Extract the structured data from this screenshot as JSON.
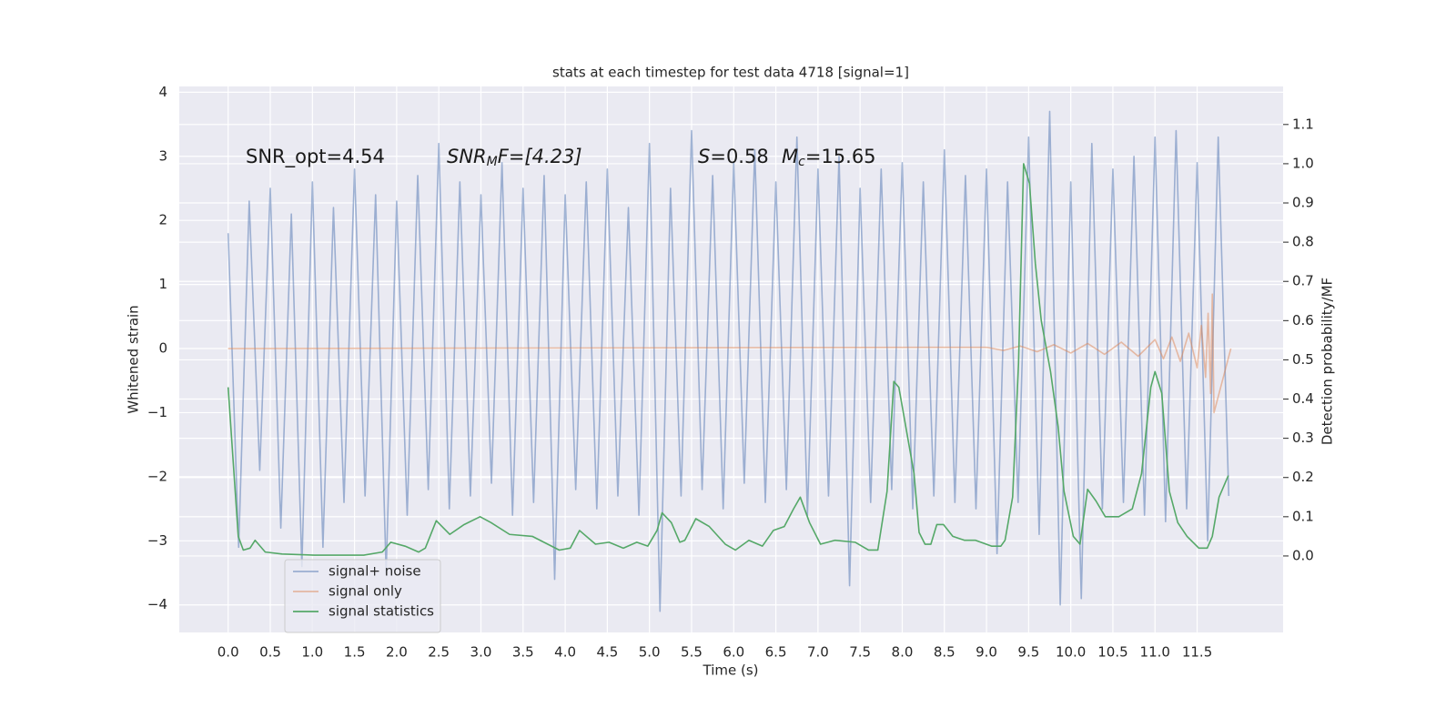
{
  "chart_data": {
    "type": "line",
    "title": "stats at each timestep for test data 4718 [signal=1]",
    "xlabel": "Time (s)",
    "ylabel": "Whitened strain",
    "y2label": "Detection probability/MF",
    "annotations": {
      "snr_opt": "SNR_opt=4.54",
      "snr_mf": [
        "SNR",
        "M",
        "F=[4.23]"
      ],
      "s": [
        "S",
        "=0.58"
      ],
      "mc": [
        "M",
        "c",
        "=15.65"
      ]
    },
    "grid": true,
    "legend": "lower left",
    "xlim": [
      -0.58,
      12.52
    ],
    "ylim": [
      -4.43,
      4.09
    ],
    "y2lim": [
      -0.195,
      1.197
    ],
    "xticks": [
      {
        "value": 0,
        "label": "0.0"
      },
      0.5,
      {
        "value": 1,
        "label": "1.0"
      },
      1.5,
      {
        "value": 2,
        "label": "2.0"
      },
      2.5,
      {
        "value": 3,
        "label": "3.0"
      },
      3.5,
      {
        "value": 4,
        "label": "4.0"
      },
      4.5,
      {
        "value": 5,
        "label": "5.0"
      },
      5.5,
      {
        "value": 6,
        "label": "6.0"
      },
      6.5,
      {
        "value": 7,
        "label": "7.0"
      },
      7.5,
      {
        "value": 8,
        "label": "8.0"
      },
      8.5,
      {
        "value": 9,
        "label": "9.0"
      },
      9.5,
      {
        "value": 10,
        "label": "10.0"
      },
      10.5,
      {
        "value": 11,
        "label": "11.0"
      },
      11.5
    ],
    "yticks": [
      {
        "value": -4,
        "label": "−4"
      },
      {
        "value": -3,
        "label": "−3"
      },
      {
        "value": -2,
        "label": "−2"
      },
      {
        "value": -1,
        "label": "−1"
      },
      0,
      1,
      2,
      3,
      4
    ],
    "y2ticks": [
      {
        "value": 0,
        "label": "0.0"
      },
      0.1,
      0.2,
      0.3,
      0.4,
      0.5,
      0.6,
      0.7,
      0.8,
      0.9,
      {
        "value": 1,
        "label": "1.0"
      },
      1.1
    ],
    "series": [
      {
        "name": "signal+ noise",
        "color": "#4c72b0",
        "opacity": 0.5,
        "x": [
          0,
          0.125,
          0.25,
          0.375,
          0.5,
          0.625,
          0.75,
          0.875,
          1,
          1.125,
          1.25,
          1.375,
          1.5,
          1.625,
          1.75,
          1.875,
          2,
          2.125,
          2.25,
          2.375,
          2.5,
          2.625,
          2.75,
          2.875,
          3,
          3.125,
          3.25,
          3.375,
          3.5,
          3.625,
          3.75,
          3.875,
          4,
          4.125,
          4.25,
          4.375,
          4.5,
          4.625,
          4.75,
          4.875,
          5,
          5.125,
          5.25,
          5.375,
          5.5,
          5.625,
          5.75,
          5.875,
          6,
          6.125,
          6.25,
          6.375,
          6.5,
          6.625,
          6.75,
          6.875,
          7,
          7.125,
          7.25,
          7.375,
          7.5,
          7.625,
          7.75,
          7.875,
          8,
          8.125,
          8.25,
          8.375,
          8.5,
          8.625,
          8.75,
          8.875,
          9,
          9.125,
          9.25,
          9.375,
          9.5,
          9.625,
          9.75,
          9.875,
          10,
          10.125,
          10.25,
          10.375,
          10.5,
          10.625,
          10.75,
          10.875,
          11,
          11.125,
          11.25,
          11.375,
          11.5,
          11.625,
          11.75,
          11.875
        ],
        "values": [
          1.8,
          -3.1,
          2.3,
          -1.9,
          2.5,
          -2.8,
          2.1,
          -3.4,
          2.6,
          -3.1,
          2.2,
          -2.4,
          2.8,
          -2.3,
          2.4,
          -3.5,
          2.3,
          -2.6,
          2.7,
          -2.2,
          3.2,
          -2.5,
          2.6,
          -2.3,
          2.4,
          -2.1,
          2.9,
          -2.6,
          2.5,
          -2.4,
          2.7,
          -3.6,
          2.4,
          -2.2,
          2.6,
          -2.5,
          2.8,
          -2.3,
          2.2,
          -2.6,
          3.2,
          -4.1,
          2.5,
          -2.3,
          3.4,
          -2.2,
          2.7,
          -2.5,
          2.9,
          -2.1,
          3.1,
          -2.4,
          2.6,
          -2.2,
          3.3,
          -2.6,
          2.8,
          -2.3,
          3.0,
          -3.7,
          2.5,
          -2.4,
          2.8,
          -2.2,
          2.9,
          -2.5,
          2.6,
          -2.3,
          3.1,
          -2.4,
          2.7,
          -2.5,
          2.8,
          -3.2,
          2.6,
          -2.4,
          3.3,
          -2.9,
          3.7,
          -4.0,
          2.6,
          -3.9,
          3.2,
          -2.5,
          2.8,
          -2.4,
          3.0,
          -2.6,
          3.3,
          -2.7,
          3.4,
          -2.5,
          2.9,
          -3.0,
          3.3,
          -2.3
        ]
      },
      {
        "name": "signal only",
        "color": "#dd8452",
        "opacity": 0.5,
        "x": [
          0,
          9.0,
          9.2,
          9.4,
          9.6,
          9.8,
          10.0,
          10.2,
          10.4,
          10.6,
          10.8,
          11.0,
          11.1,
          11.2,
          11.3,
          11.4,
          11.5,
          11.55,
          11.6,
          11.63,
          11.66,
          11.68,
          11.7,
          11.9
        ],
        "values": [
          0,
          0.02,
          -0.03,
          0.04,
          -0.05,
          0.06,
          -0.07,
          0.08,
          -0.09,
          0.1,
          -0.12,
          0.14,
          -0.16,
          0.18,
          -0.2,
          0.24,
          -0.3,
          0.36,
          -0.45,
          0.55,
          -0.7,
          0.85,
          -1.0,
          0
        ]
      },
      {
        "name": "signal statistics",
        "color": "#55a868",
        "opacity": 1,
        "axis": "y2",
        "x": [
          0,
          0.12,
          0.18,
          0.26,
          0.32,
          0.44,
          0.64,
          1.02,
          1.61,
          1.83,
          1.93,
          2.1,
          2.26,
          2.34,
          2.47,
          2.63,
          2.8,
          2.99,
          3.12,
          3.34,
          3.61,
          3.93,
          4.06,
          4.17,
          4.36,
          4.52,
          4.69,
          4.85,
          4.98,
          5.09,
          5.15,
          5.26,
          5.36,
          5.42,
          5.55,
          5.71,
          5.9,
          6.02,
          6.18,
          6.34,
          6.47,
          6.6,
          6.71,
          6.79,
          6.9,
          7.03,
          7.2,
          7.44,
          7.6,
          7.71,
          7.82,
          7.9,
          7.96,
          8.14,
          8.2,
          8.27,
          8.34,
          8.41,
          8.49,
          8.6,
          8.74,
          8.87,
          9.06,
          9.17,
          9.22,
          9.31,
          9.38,
          9.44,
          9.51,
          9.58,
          9.65,
          9.76,
          9.85,
          9.92,
          10.03,
          10.11,
          10.2,
          10.3,
          10.41,
          10.57,
          10.73,
          10.84,
          10.95,
          11.0,
          11.08,
          11.17,
          11.27,
          11.38,
          11.52,
          11.62,
          11.68,
          11.76,
          11.87
        ],
        "values": [
          0.43,
          0.05,
          0.015,
          0.02,
          0.04,
          0.01,
          0.005,
          0.002,
          0.002,
          0.01,
          0.035,
          0.025,
          0.01,
          0.02,
          0.09,
          0.055,
          0.08,
          0.1,
          0.085,
          0.055,
          0.05,
          0.015,
          0.02,
          0.065,
          0.03,
          0.035,
          0.02,
          0.035,
          0.025,
          0.065,
          0.11,
          0.085,
          0.035,
          0.04,
          0.095,
          0.075,
          0.03,
          0.015,
          0.04,
          0.025,
          0.065,
          0.075,
          0.12,
          0.15,
          0.085,
          0.03,
          0.04,
          0.035,
          0.015,
          0.015,
          0.165,
          0.445,
          0.43,
          0.21,
          0.06,
          0.03,
          0.03,
          0.08,
          0.08,
          0.05,
          0.04,
          0.04,
          0.025,
          0.025,
          0.04,
          0.15,
          0.49,
          1.0,
          0.95,
          0.745,
          0.6,
          0.47,
          0.33,
          0.165,
          0.05,
          0.03,
          0.17,
          0.14,
          0.1,
          0.1,
          0.12,
          0.21,
          0.43,
          0.47,
          0.415,
          0.165,
          0.085,
          0.05,
          0.02,
          0.02,
          0.05,
          0.15,
          0.205
        ]
      }
    ]
  }
}
